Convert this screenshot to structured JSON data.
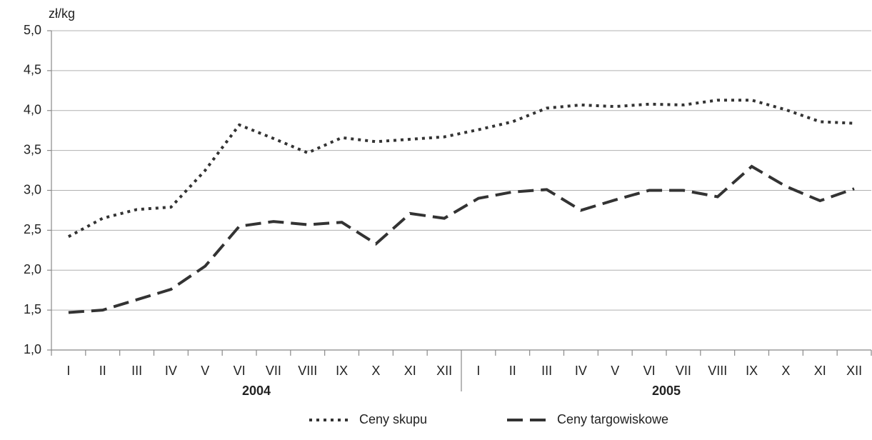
{
  "chart_data": {
    "type": "line",
    "y_unit": "zł/kg",
    "categories": [
      "I",
      "II",
      "III",
      "IV",
      "V",
      "VI",
      "VII",
      "VIII",
      "IX",
      "X",
      "XI",
      "XII",
      "I",
      "II",
      "III",
      "IV",
      "V",
      "VI",
      "VII",
      "VIII",
      "IX",
      "X",
      "XI",
      "XII"
    ],
    "groups": [
      "2004",
      "2005"
    ],
    "series": [
      {
        "name": "Ceny skupu",
        "color": "#333333",
        "dash": "dotted",
        "values": [
          2.42,
          2.65,
          2.76,
          2.79,
          3.25,
          3.82,
          3.65,
          3.47,
          3.66,
          3.61,
          3.64,
          3.67,
          3.76,
          3.86,
          4.03,
          4.07,
          4.05,
          4.08,
          4.07,
          4.13,
          4.13,
          4.01,
          3.86,
          3.84
        ]
      },
      {
        "name": "Ceny targowiskowe",
        "color": "#333333",
        "dash": "dashed",
        "values": [
          1.47,
          1.5,
          1.63,
          1.76,
          2.05,
          2.55,
          2.61,
          2.57,
          2.6,
          2.33,
          2.71,
          2.65,
          2.9,
          2.98,
          3.01,
          2.75,
          2.88,
          3.0,
          3.0,
          2.92,
          3.3,
          3.05,
          2.87,
          3.02
        ]
      }
    ],
    "ylim": [
      1.0,
      5.0
    ],
    "yticks": [
      {
        "value": 1.0,
        "label": "1,0"
      },
      {
        "value": 1.5,
        "label": "1,5"
      },
      {
        "value": 2.0,
        "label": "2,0"
      },
      {
        "value": 2.5,
        "label": "2,5"
      },
      {
        "value": 3.0,
        "label": "3,0"
      },
      {
        "value": 3.5,
        "label": "3,5"
      },
      {
        "value": 4.0,
        "label": "4,0"
      },
      {
        "value": 4.5,
        "label": "4,5"
      },
      {
        "value": 5.0,
        "label": "5,0"
      }
    ],
    "grid": true,
    "legend": "bottom"
  }
}
